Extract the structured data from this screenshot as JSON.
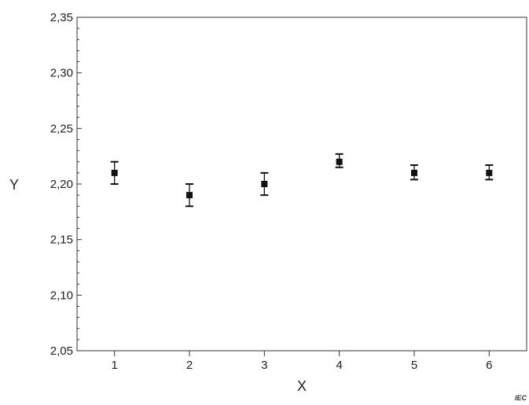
{
  "chart_data": {
    "type": "scatter",
    "xlabel": "X",
    "ylabel": "Y",
    "xlim": [
      0.5,
      6.5
    ],
    "ylim": [
      2.05,
      2.35
    ],
    "x_ticks": [
      "1",
      "2",
      "3",
      "4",
      "5",
      "6"
    ],
    "y_ticks": [
      "2,05",
      "2,10",
      "2,15",
      "2,20",
      "2,25",
      "2,30",
      "2,35"
    ],
    "y_tick_values": [
      2.05,
      2.1,
      2.15,
      2.2,
      2.25,
      2.3,
      2.35
    ],
    "grid": false,
    "error_bars": true,
    "points": [
      {
        "x": 1,
        "y": 2.21,
        "y_low": 2.2,
        "y_high": 2.22
      },
      {
        "x": 2,
        "y": 2.19,
        "y_low": 2.18,
        "y_high": 2.2
      },
      {
        "x": 3,
        "y": 2.2,
        "y_low": 2.19,
        "y_high": 2.21
      },
      {
        "x": 4,
        "y": 2.22,
        "y_low": 2.215,
        "y_high": 2.227
      },
      {
        "x": 5,
        "y": 2.21,
        "y_low": 2.204,
        "y_high": 2.217
      },
      {
        "x": 6,
        "y": 2.21,
        "y_low": 2.204,
        "y_high": 2.217
      }
    ],
    "marker_color": "#111111",
    "axis_color": "#333333"
  },
  "watermark": "IEC"
}
